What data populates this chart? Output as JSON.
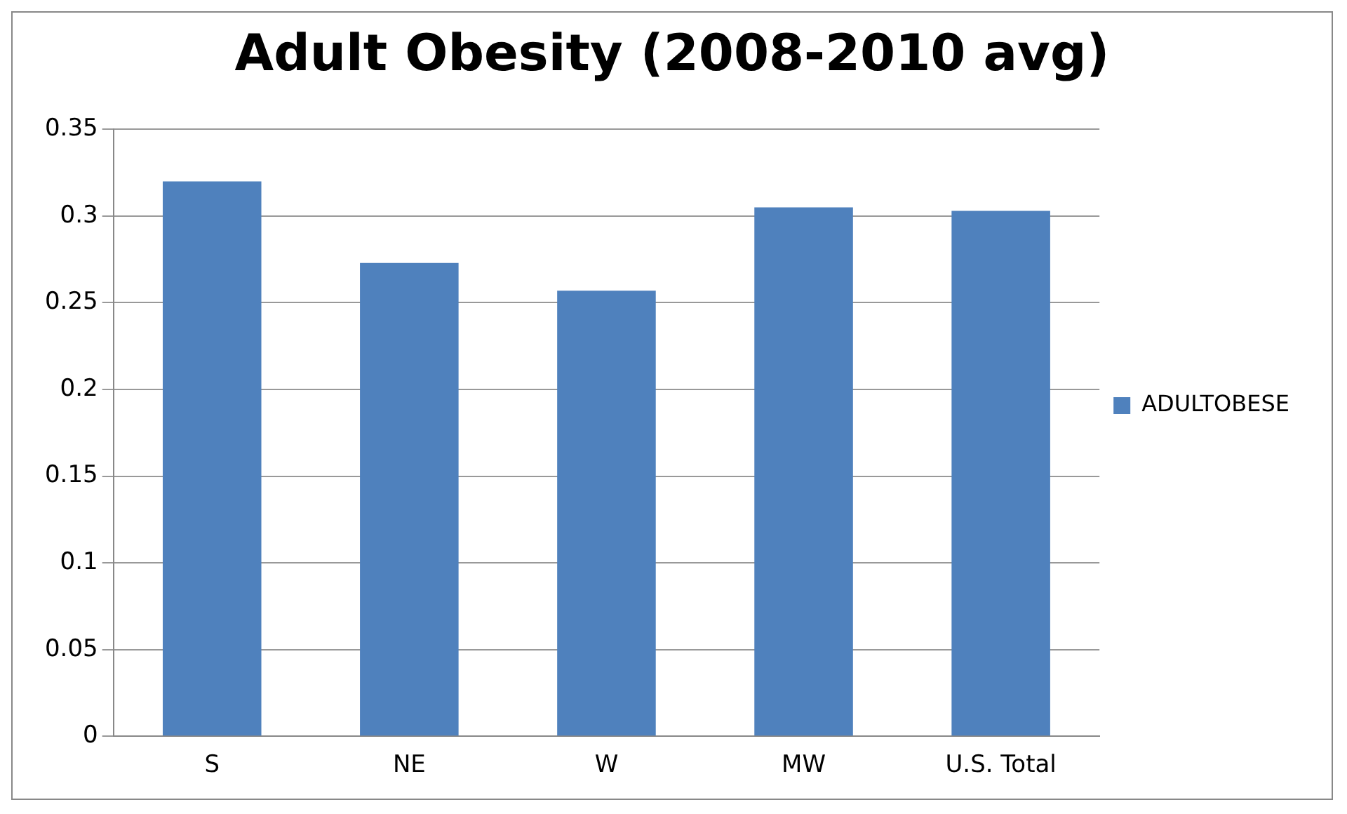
{
  "chart_data": {
    "type": "bar",
    "title": "Adult Obesity (2008-2010 avg)",
    "categories": [
      "S",
      "NE",
      "W",
      "MW",
      "U.S. Total"
    ],
    "series": [
      {
        "name": "ADULTOBESE",
        "color": "#4f81bd",
        "values": [
          0.32,
          0.273,
          0.257,
          0.305,
          0.303
        ]
      }
    ],
    "ylim": [
      0,
      0.35
    ],
    "yticks": [
      0,
      0.05,
      0.1,
      0.15,
      0.2,
      0.25,
      0.3,
      0.35
    ],
    "grid": "y",
    "legend": "right"
  }
}
